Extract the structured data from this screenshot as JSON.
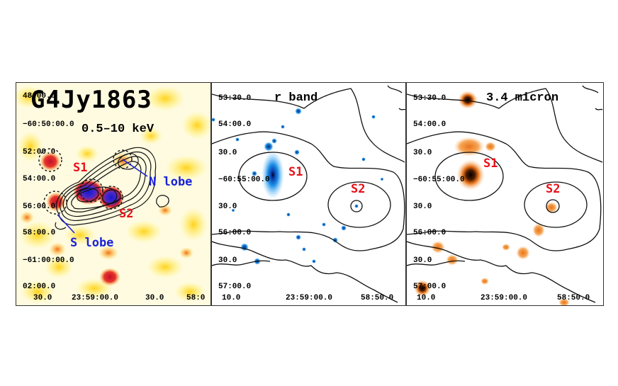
{
  "panel_xray": {
    "source_name": "G4Jy1863",
    "energy_band": "0.5–10 keV",
    "dec_ticks": [
      "48:00.0",
      "−60:50:00.0",
      "52:00.0",
      "54:00.0",
      "56:00.0",
      "58:00.0",
      "−61:00:00.0",
      "02:00.0"
    ],
    "ra_ticks": [
      "30.0",
      "23:59:00.0",
      "30.0",
      "58:0"
    ],
    "labels": {
      "s1": "S1",
      "s2": "S2",
      "n_lobe": "N lobe",
      "s_lobe": "S lobe"
    }
  },
  "panel_optical": {
    "band": "r band",
    "dec_ticks": [
      "53:30.0",
      "54:00.0",
      "30.0",
      "−60:55:00.0",
      "30.0",
      "56:00.0",
      "30.0",
      "57:00.0"
    ],
    "ra_ticks": [
      "10.0",
      "23:59:00.0",
      "58:50.0"
    ],
    "labels": {
      "s1": "S1",
      "s2": "S2"
    }
  },
  "panel_ir": {
    "band": "3.4 micron",
    "dec_ticks": [
      "53:30.0",
      "54:00.0",
      "30.0",
      "−60:55:00.0",
      "30.0",
      "56:00.0",
      "30.0",
      "57:00.0"
    ],
    "ra_ticks": [
      "10.0",
      "23:59:00.0",
      "58:50.0"
    ],
    "labels": {
      "s1": "S1",
      "s2": "S2"
    }
  },
  "colors": {
    "label_red": "#e8101a",
    "label_blue": "#1a22d8",
    "xray_bg": "#fff36a",
    "optical_blue": "#1e90e6",
    "ir_orange": "#f08a1c"
  }
}
